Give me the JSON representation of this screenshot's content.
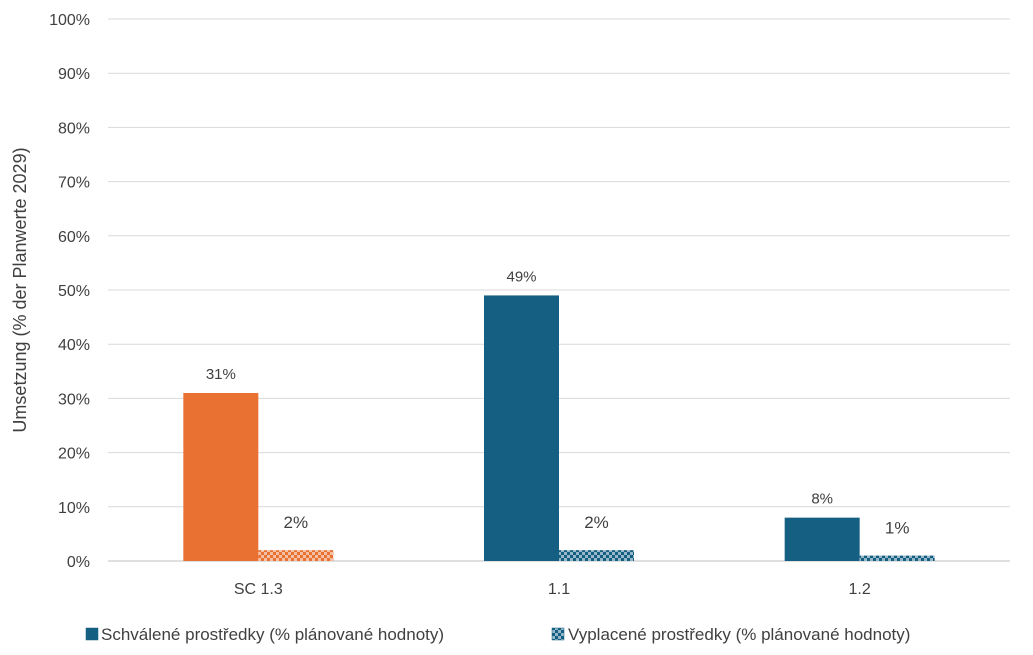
{
  "chart_data": {
    "type": "bar",
    "title": "",
    "xlabel": "",
    "ylabel": "Umsetzung (% der Planwerte 2029)",
    "ylim": [
      0,
      100
    ],
    "yticks": [
      0,
      10,
      20,
      30,
      40,
      50,
      60,
      70,
      80,
      90,
      100
    ],
    "ytick_labels": [
      "0%",
      "10%",
      "20%",
      "30%",
      "40%",
      "50%",
      "60%",
      "70%",
      "80%",
      "90%",
      "100%"
    ],
    "grid": true,
    "legend_position": "bottom",
    "categories": [
      "SC 1.3",
      "1.1",
      "1.2"
    ],
    "series": [
      {
        "name": "Schválené prostředky (% plánované hodnoty)",
        "values": [
          31,
          49,
          8
        ],
        "labels": [
          "31%",
          "49%",
          "8%"
        ],
        "pattern": "solid"
      },
      {
        "name": "Vyplacené prostředky (% plánované hodnoty)",
        "values": [
          2,
          2,
          1
        ],
        "labels": [
          "2%",
          "2%",
          "1%"
        ],
        "pattern": "checker"
      }
    ],
    "category_colors": [
      "#E97132",
      "#156082",
      "#156082"
    ],
    "legend_color": "#156082"
  }
}
